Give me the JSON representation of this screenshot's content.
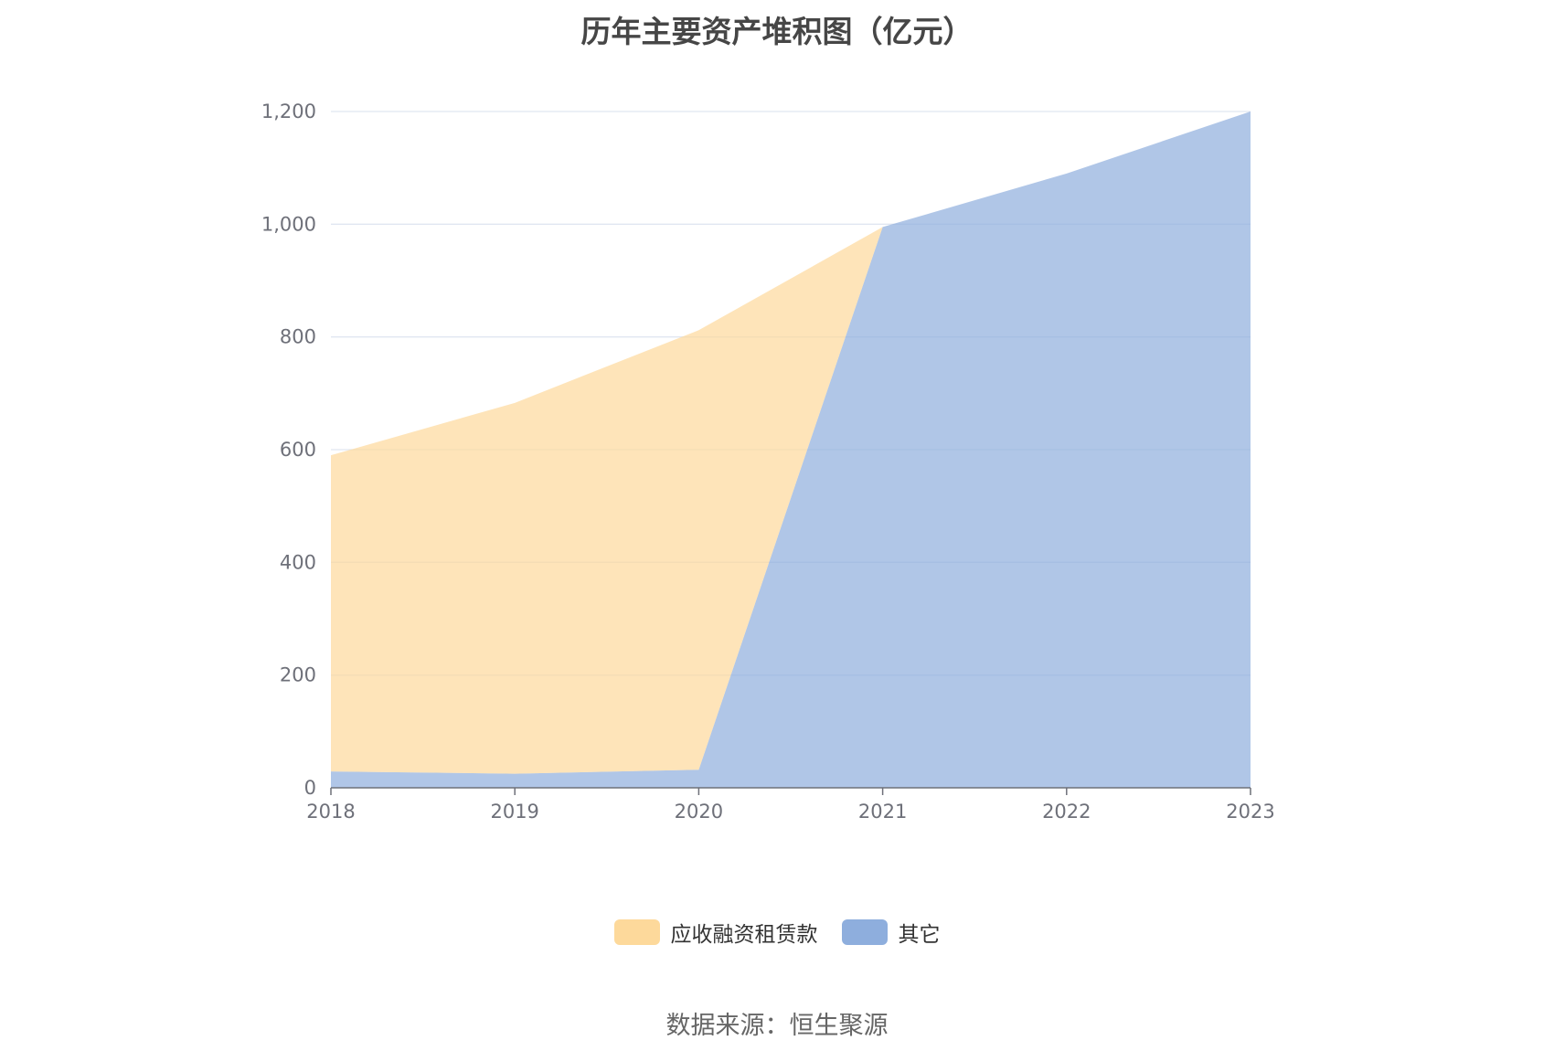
{
  "chart_data": {
    "type": "area",
    "stacked": true,
    "title": "历年主要资产堆积图（亿元）",
    "categories": [
      "2018",
      "2019",
      "2020",
      "2021",
      "2022",
      "2023"
    ],
    "ylim": [
      0,
      1200
    ],
    "yticks": [
      "0",
      "200",
      "400",
      "600",
      "800",
      "1,000",
      "1,200"
    ],
    "ytick_values": [
      0,
      200,
      400,
      600,
      800,
      1000,
      1200
    ],
    "grid": true,
    "legend_position": "bottom",
    "series": [
      {
        "name": "其它",
        "color": "#8eaedd",
        "values": [
          29,
          25,
          32,
          995,
          1090,
          1200
        ]
      },
      {
        "name": "应收融资租赁款",
        "color": "#fdd99b",
        "values": [
          561,
          658,
          780,
          0,
          0,
          0
        ]
      }
    ]
  },
  "legend": {
    "item_a": "应收融资租赁款",
    "item_b": "其它"
  },
  "source": "数据来源：恒生聚源"
}
